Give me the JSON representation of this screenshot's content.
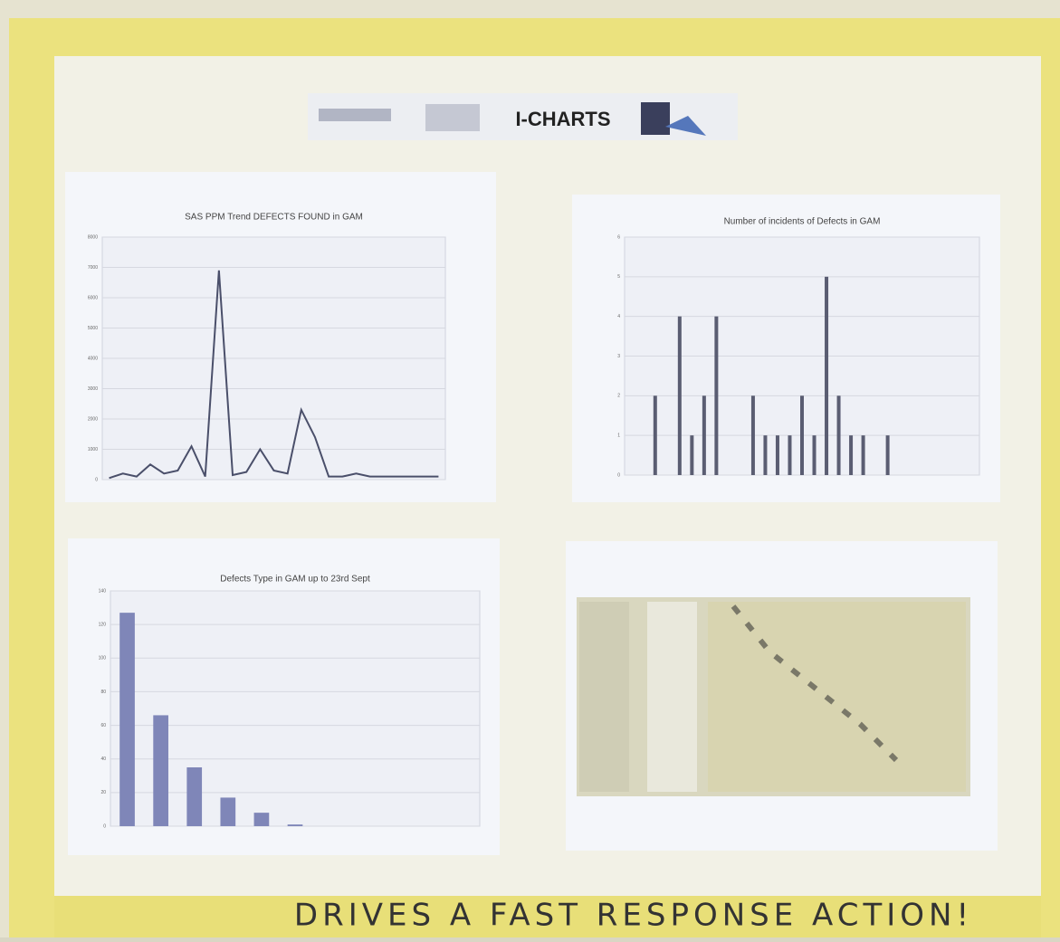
{
  "header": {
    "title": "I-CHARTS"
  },
  "footer": {
    "slogan": "DRIVES A FAST RESPONSE ACTION!"
  },
  "chart_data": [
    {
      "type": "line",
      "title": "SAS PPM Trend DEFECTS FOUND in GAM",
      "color": "#4a4f6a",
      "categories": [
        null,
        null,
        null,
        null,
        null,
        null,
        null,
        null,
        null,
        null,
        null,
        null,
        null,
        null,
        null,
        null,
        null,
        null,
        null,
        null,
        null,
        null,
        null,
        null,
        null
      ],
      "values": [
        50,
        200,
        100,
        500,
        200,
        300,
        1100,
        100,
        6900,
        150,
        250,
        1000,
        300,
        200,
        2300,
        1400,
        100,
        100,
        200,
        100,
        100,
        100,
        100,
        100,
        100
      ],
      "ylim": [
        0,
        8000
      ],
      "yticks": [
        0,
        1000,
        2000,
        3000,
        4000,
        5000,
        6000,
        7000,
        8000
      ],
      "grid": true
    },
    {
      "type": "bar",
      "title": "Number of incidents of Defects in GAM",
      "color": "#5a5d72",
      "categories": [
        null,
        null,
        null,
        null,
        null,
        null,
        null,
        null,
        null,
        null,
        null,
        null,
        null,
        null,
        null,
        null,
        null,
        null,
        null,
        null,
        null,
        null,
        null,
        null,
        null,
        null,
        null,
        null,
        null
      ],
      "values": [
        0,
        0,
        2,
        0,
        4,
        1,
        2,
        4,
        0,
        0,
        2,
        1,
        1,
        1,
        2,
        1,
        5,
        2,
        1,
        1,
        0,
        1,
        0,
        0,
        0,
        0,
        0,
        0,
        0
      ],
      "ylim": [
        0,
        6
      ],
      "yticks": [
        0,
        1,
        2,
        3,
        4,
        5,
        6
      ],
      "grid": true
    },
    {
      "type": "bar",
      "title": "Defects Type in GAM up to 23rd Sept",
      "color": "#7f86b8",
      "categories": [
        null,
        null,
        null,
        null,
        null,
        null,
        null,
        null,
        null,
        null,
        null
      ],
      "values": [
        127,
        66,
        35,
        17,
        8,
        1,
        0,
        0,
        0,
        0,
        0
      ],
      "ylim": [
        0,
        140
      ],
      "yticks": [
        0,
        20,
        40,
        60,
        80,
        100,
        120,
        140
      ],
      "grid": true
    }
  ]
}
